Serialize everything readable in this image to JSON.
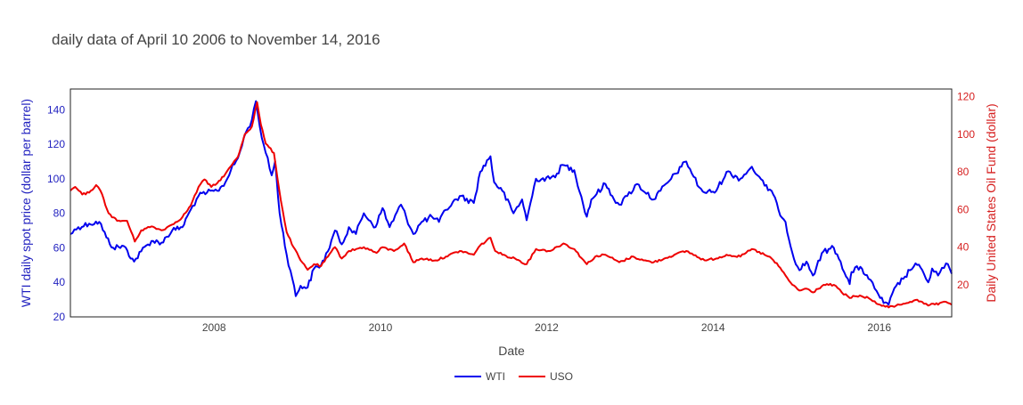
{
  "chart_data": {
    "type": "line",
    "title": "daily data of April 10 2006 to November 14, 2016",
    "xlabel": "Date",
    "ylabel_left": "WTI daily spot price (dollar per barrel)",
    "ylabel_right": "Daily United States Oil Fund (dollar)",
    "x_range": [
      "2006-04-10",
      "2016-11-14"
    ],
    "x_ticks": [
      "2008",
      "2010",
      "2012",
      "2014",
      "2016"
    ],
    "y_left_range": [
      20,
      152
    ],
    "y_left_ticks": [
      20,
      40,
      60,
      80,
      100,
      120,
      140
    ],
    "y_right_range": [
      3,
      124
    ],
    "y_right_ticks": [
      20,
      40,
      60,
      80,
      100,
      120
    ],
    "grid": false,
    "legend_position": "bottom-center",
    "series": [
      {
        "name": "WTI",
        "axis": "left",
        "color": "#0000ee",
        "points": [
          [
            "2006-04-10",
            68
          ],
          [
            "2006-05-15",
            72
          ],
          [
            "2006-07-01",
            74
          ],
          [
            "2006-08-15",
            75
          ],
          [
            "2006-09-15",
            66
          ],
          [
            "2006-10-15",
            60
          ],
          [
            "2006-12-01",
            61
          ],
          [
            "2007-01-15",
            52
          ],
          [
            "2007-02-15",
            58
          ],
          [
            "2007-04-01",
            64
          ],
          [
            "2007-05-15",
            63
          ],
          [
            "2007-07-01",
            70
          ],
          [
            "2007-08-15",
            72
          ],
          [
            "2007-09-20",
            82
          ],
          [
            "2007-10-25",
            90
          ],
          [
            "2007-12-01",
            92
          ],
          [
            "2008-01-15",
            93
          ],
          [
            "2008-02-20",
            98
          ],
          [
            "2008-03-15",
            105
          ],
          [
            "2008-04-15",
            112
          ],
          [
            "2008-05-20",
            127
          ],
          [
            "2008-06-15",
            134
          ],
          [
            "2008-07-03",
            145
          ],
          [
            "2008-07-20",
            130
          ],
          [
            "2008-08-15",
            115
          ],
          [
            "2008-09-10",
            102
          ],
          [
            "2008-09-25",
            110
          ],
          [
            "2008-10-15",
            80
          ],
          [
            "2008-11-15",
            56
          ],
          [
            "2008-12-10",
            42
          ],
          [
            "2008-12-25",
            32
          ],
          [
            "2009-01-15",
            38
          ],
          [
            "2009-02-15",
            37
          ],
          [
            "2009-03-15",
            48
          ],
          [
            "2009-04-15",
            50
          ],
          [
            "2009-05-15",
            58
          ],
          [
            "2009-06-15",
            70
          ],
          [
            "2009-07-15",
            62
          ],
          [
            "2009-08-15",
            72
          ],
          [
            "2009-09-15",
            68
          ],
          [
            "2009-10-20",
            80
          ],
          [
            "2009-12-10",
            72
          ],
          [
            "2010-01-10",
            83
          ],
          [
            "2010-02-10",
            72
          ],
          [
            "2010-04-01",
            85
          ],
          [
            "2010-05-25",
            68
          ],
          [
            "2010-07-01",
            75
          ],
          [
            "2010-08-15",
            78
          ],
          [
            "2010-09-15",
            75
          ],
          [
            "2010-10-15",
            82
          ],
          [
            "2010-12-15",
            90
          ],
          [
            "2011-02-15",
            86
          ],
          [
            "2011-03-15",
            104
          ],
          [
            "2011-04-29",
            113
          ],
          [
            "2011-05-15",
            98
          ],
          [
            "2011-06-20",
            93
          ],
          [
            "2011-08-08",
            80
          ],
          [
            "2011-09-15",
            88
          ],
          [
            "2011-10-05",
            76
          ],
          [
            "2011-11-15",
            100
          ],
          [
            "2012-01-15",
            100
          ],
          [
            "2012-02-15",
            103
          ],
          [
            "2012-03-10",
            108
          ],
          [
            "2012-05-01",
            105
          ],
          [
            "2012-06-25",
            78
          ],
          [
            "2012-07-15",
            88
          ],
          [
            "2012-09-15",
            97
          ],
          [
            "2012-10-15",
            90
          ],
          [
            "2012-11-15",
            85
          ],
          [
            "2012-12-20",
            90
          ],
          [
            "2013-02-01",
            97
          ],
          [
            "2013-04-15",
            88
          ],
          [
            "2013-05-15",
            93
          ],
          [
            "2013-07-01",
            100
          ],
          [
            "2013-08-15",
            107
          ],
          [
            "2013-09-05",
            110
          ],
          [
            "2013-11-01",
            95
          ],
          [
            "2013-11-25",
            92
          ],
          [
            "2014-01-15",
            93
          ],
          [
            "2014-03-01",
            104
          ],
          [
            "2014-05-01",
            100
          ],
          [
            "2014-06-20",
            107
          ],
          [
            "2014-07-15",
            102
          ],
          [
            "2014-08-15",
            96
          ],
          [
            "2014-09-15",
            93
          ],
          [
            "2014-10-15",
            82
          ],
          [
            "2014-11-15",
            75
          ],
          [
            "2014-12-15",
            57
          ],
          [
            "2015-01-15",
            47
          ],
          [
            "2015-02-15",
            52
          ],
          [
            "2015-03-15",
            44
          ],
          [
            "2015-05-01",
            58
          ],
          [
            "2015-06-15",
            60
          ],
          [
            "2015-07-15",
            52
          ],
          [
            "2015-08-24",
            39
          ],
          [
            "2015-09-01",
            46
          ],
          [
            "2015-10-10",
            49
          ],
          [
            "2015-11-15",
            42
          ],
          [
            "2015-12-20",
            35
          ],
          [
            "2016-01-20",
            28
          ],
          [
            "2016-02-11",
            27
          ],
          [
            "2016-03-15",
            38
          ],
          [
            "2016-04-15",
            42
          ],
          [
            "2016-05-15",
            47
          ],
          [
            "2016-06-08",
            51
          ],
          [
            "2016-07-15",
            45
          ],
          [
            "2016-08-03",
            40
          ],
          [
            "2016-08-20",
            48
          ],
          [
            "2016-09-15",
            44
          ],
          [
            "2016-10-20",
            51
          ],
          [
            "2016-11-14",
            45
          ]
        ]
      },
      {
        "name": "USO",
        "axis": "right",
        "color": "#ee0000",
        "points": [
          [
            "2006-04-10",
            70
          ],
          [
            "2006-05-01",
            72
          ],
          [
            "2006-06-01",
            68
          ],
          [
            "2006-07-01",
            69
          ],
          [
            "2006-08-01",
            73
          ],
          [
            "2006-08-20",
            70
          ],
          [
            "2006-09-25",
            58
          ],
          [
            "2006-11-01",
            54
          ],
          [
            "2006-12-15",
            54
          ],
          [
            "2007-01-18",
            43
          ],
          [
            "2007-02-15",
            49
          ],
          [
            "2007-04-01",
            51
          ],
          [
            "2007-05-15",
            49
          ],
          [
            "2007-07-01",
            52
          ],
          [
            "2007-08-15",
            56
          ],
          [
            "2007-09-20",
            62
          ],
          [
            "2007-10-25",
            72
          ],
          [
            "2007-11-20",
            76
          ],
          [
            "2007-12-20",
            72
          ],
          [
            "2008-01-15",
            74
          ],
          [
            "2008-02-20",
            79
          ],
          [
            "2008-03-15",
            83
          ],
          [
            "2008-04-15",
            88
          ],
          [
            "2008-05-15",
            100
          ],
          [
            "2008-06-15",
            104
          ],
          [
            "2008-07-08",
            117
          ],
          [
            "2008-07-25",
            105
          ],
          [
            "2008-08-15",
            95
          ],
          [
            "2008-09-20",
            90
          ],
          [
            "2008-10-20",
            65
          ],
          [
            "2008-11-15",
            48
          ],
          [
            "2008-12-15",
            40
          ],
          [
            "2009-01-15",
            33
          ],
          [
            "2009-02-15",
            28
          ],
          [
            "2009-03-15",
            31
          ],
          [
            "2009-04-15",
            30
          ],
          [
            "2009-05-15",
            35
          ],
          [
            "2009-06-15",
            40
          ],
          [
            "2009-07-15",
            34
          ],
          [
            "2009-08-15",
            38
          ],
          [
            "2009-10-20",
            40
          ],
          [
            "2009-12-15",
            37
          ],
          [
            "2010-01-10",
            40
          ],
          [
            "2010-03-01",
            38
          ],
          [
            "2010-04-15",
            42
          ],
          [
            "2010-05-25",
            32
          ],
          [
            "2010-07-01",
            34
          ],
          [
            "2010-09-01",
            33
          ],
          [
            "2010-10-15",
            35
          ],
          [
            "2010-12-15",
            38
          ],
          [
            "2011-02-15",
            36
          ],
          [
            "2011-03-15",
            41
          ],
          [
            "2011-04-29",
            45
          ],
          [
            "2011-05-20",
            38
          ],
          [
            "2011-06-20",
            36
          ],
          [
            "2011-08-15",
            34
          ],
          [
            "2011-10-05",
            31
          ],
          [
            "2011-11-15",
            39
          ],
          [
            "2012-01-15",
            38
          ],
          [
            "2012-03-15",
            42
          ],
          [
            "2012-05-01",
            39
          ],
          [
            "2012-06-25",
            31
          ],
          [
            "2012-08-01",
            35
          ],
          [
            "2012-09-15",
            36
          ],
          [
            "2012-11-15",
            32
          ],
          [
            "2013-01-15",
            35
          ],
          [
            "2013-03-01",
            33
          ],
          [
            "2013-04-15",
            32
          ],
          [
            "2013-06-01",
            34
          ],
          [
            "2013-07-15",
            36
          ],
          [
            "2013-09-05",
            38
          ],
          [
            "2013-11-25",
            33
          ],
          [
            "2014-01-15",
            34
          ],
          [
            "2014-03-01",
            36
          ],
          [
            "2014-05-01",
            35
          ],
          [
            "2014-06-20",
            39
          ],
          [
            "2014-08-15",
            36
          ],
          [
            "2014-09-15",
            34
          ],
          [
            "2014-10-15",
            30
          ],
          [
            "2014-11-15",
            25
          ],
          [
            "2014-12-15",
            20
          ],
          [
            "2015-01-15",
            17
          ],
          [
            "2015-02-15",
            18
          ],
          [
            "2015-03-15",
            16
          ],
          [
            "2015-05-01",
            20
          ],
          [
            "2015-06-15",
            20
          ],
          [
            "2015-07-20",
            16
          ],
          [
            "2015-08-24",
            13
          ],
          [
            "2015-09-15",
            14
          ],
          [
            "2015-10-15",
            14
          ],
          [
            "2015-11-15",
            13
          ],
          [
            "2015-12-20",
            10
          ],
          [
            "2016-01-20",
            9
          ],
          [
            "2016-02-11",
            8
          ],
          [
            "2016-03-15",
            9
          ],
          [
            "2016-04-15",
            10
          ],
          [
            "2016-05-15",
            11
          ],
          [
            "2016-06-08",
            12
          ],
          [
            "2016-07-15",
            10
          ],
          [
            "2016-08-03",
            9
          ],
          [
            "2016-08-25",
            10
          ],
          [
            "2016-09-15",
            9.5
          ],
          [
            "2016-10-20",
            11
          ],
          [
            "2016-11-14",
            9.5
          ]
        ]
      }
    ]
  }
}
